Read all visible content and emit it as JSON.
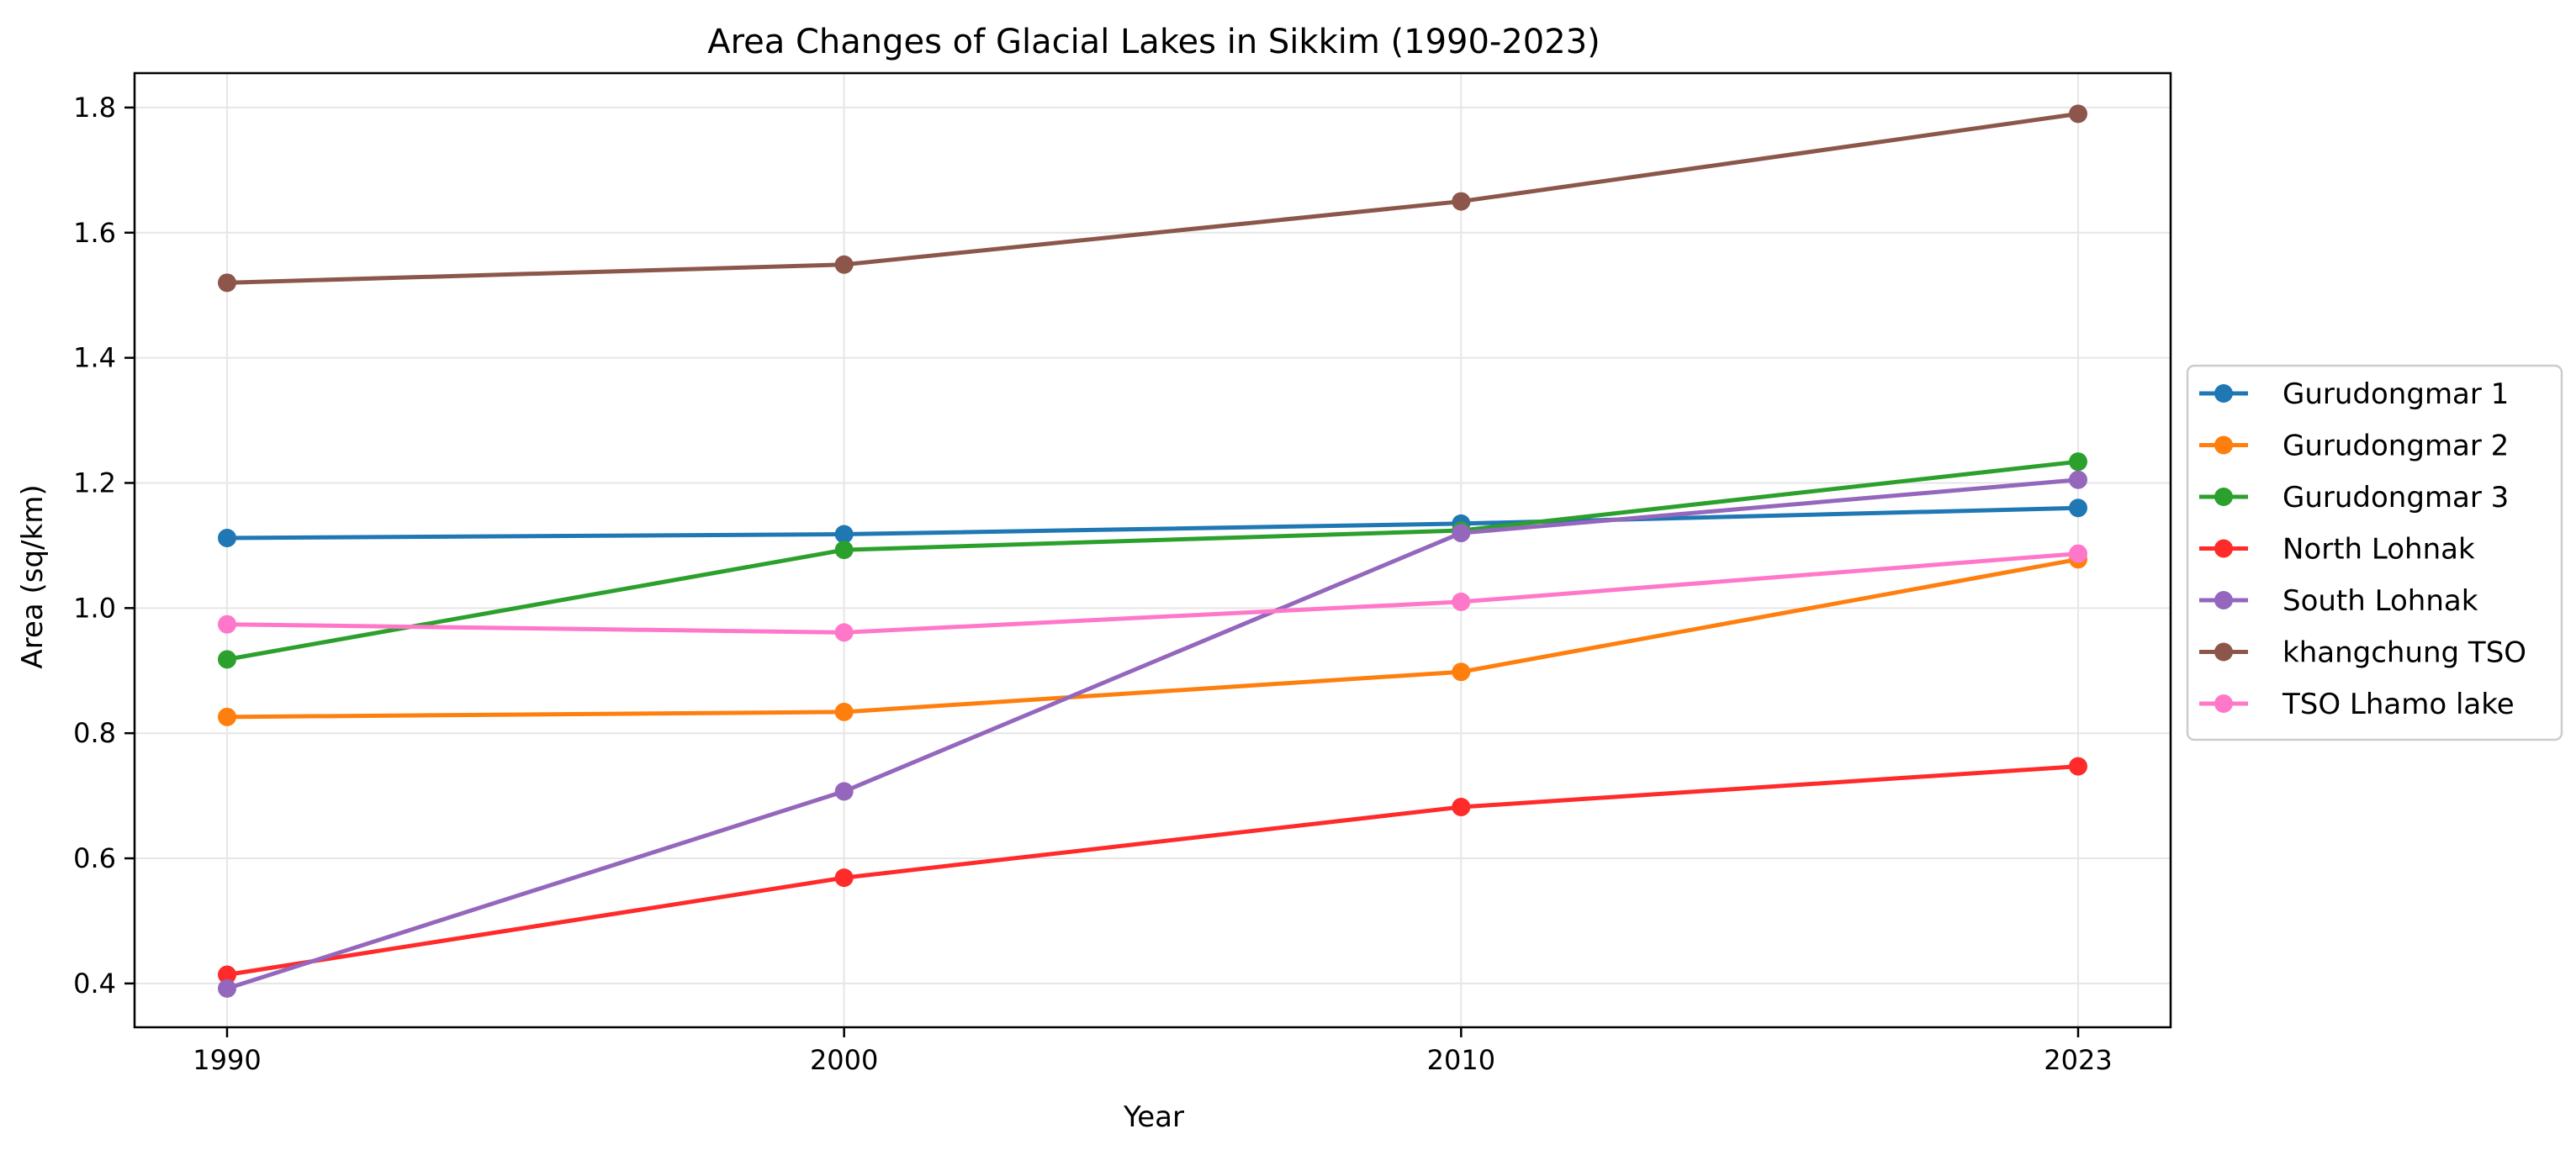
{
  "chart_data": {
    "type": "line",
    "title": "Area Changes of Glacial Lakes in Sikkim (1990-2023)",
    "xlabel": "Year",
    "ylabel": "Area (sq/km)",
    "categories": [
      "1990",
      "2000",
      "2010",
      "2023"
    ],
    "ylim": [
      0.33,
      1.855
    ],
    "yticks": [
      0.4,
      0.6,
      0.8,
      1.0,
      1.2,
      1.4,
      1.6,
      1.8
    ],
    "ytick_labels": [
      "0.4",
      "0.6",
      "0.8",
      "1.0",
      "1.2",
      "1.4",
      "1.6",
      "1.8"
    ],
    "grid": true,
    "legend_position": "right outside",
    "series": [
      {
        "name": "Gurudongmar 1",
        "color": "#1f77b4",
        "values": [
          1.112,
          1.118,
          1.135,
          1.16
        ]
      },
      {
        "name": "Gurudongmar 2",
        "color": "#ff7f0e",
        "values": [
          0.826,
          0.834,
          0.898,
          1.078
        ]
      },
      {
        "name": "Gurudongmar 3",
        "color": "#2ca02c",
        "values": [
          0.918,
          1.093,
          1.124,
          1.234
        ]
      },
      {
        "name": "North Lohnak",
        "color": "#ff2a2a",
        "values": [
          0.414,
          0.569,
          0.682,
          0.747
        ]
      },
      {
        "name": "South Lohnak",
        "color": "#9467bd",
        "values": [
          0.392,
          0.707,
          1.12,
          1.205
        ]
      },
      {
        "name": "khangchung TSO",
        "color": "#8c564b",
        "values": [
          1.52,
          1.549,
          1.65,
          1.79
        ]
      },
      {
        "name": "TSO Lhamo lake",
        "color": "#ff77c9",
        "values": [
          0.974,
          0.961,
          1.01,
          1.087
        ]
      }
    ]
  }
}
